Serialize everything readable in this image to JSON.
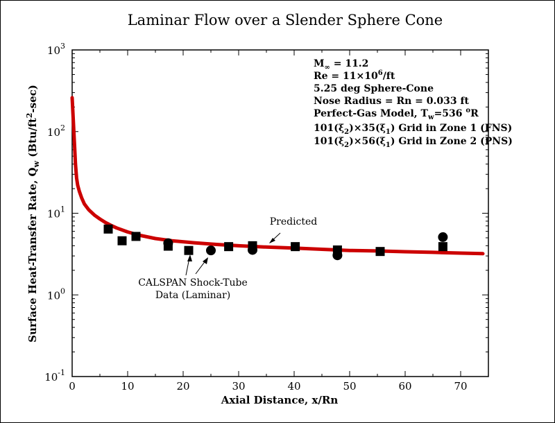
{
  "chart_data": {
    "type": "line",
    "title": "Laminar Flow over a Slender Sphere Cone",
    "xlabel": "Axial Distance, x/Rn",
    "ylabel": {
      "pre": "Surface Heat-Transfer Rate, Q",
      "sub": "w",
      "mid": " (Btu/ft",
      "sup": "2",
      "post": "-sec)"
    },
    "xlim": [
      0,
      75
    ],
    "ylim": [
      0.1,
      1000
    ],
    "yscale": "log",
    "x_ticks": [
      "0",
      "10",
      "20",
      "30",
      "40",
      "50",
      "60",
      "70"
    ],
    "y_ticks": [
      {
        "base": "10",
        "exp": "-1"
      },
      {
        "base": "10",
        "exp": "0"
      },
      {
        "base": "10",
        "exp": "1"
      },
      {
        "base": "10",
        "exp": "2"
      },
      {
        "base": "10",
        "exp": "3"
      }
    ],
    "series": [
      {
        "name": "Predicted",
        "kind": "line",
        "color": "#cc0000",
        "x": [
          0,
          0.2,
          0.4,
          0.6,
          0.8,
          1,
          1.3,
          1.7,
          2.2,
          3,
          4,
          5,
          6,
          7,
          8,
          10,
          12,
          15,
          18,
          22,
          26,
          30,
          35,
          40,
          45,
          50,
          55,
          60,
          65,
          70,
          74
        ],
        "y": [
          260,
          140,
          75,
          40,
          27,
          22,
          18.5,
          15.5,
          13,
          11,
          9.5,
          8.5,
          7.7,
          7.1,
          6.6,
          5.9,
          5.4,
          4.9,
          4.6,
          4.35,
          4.15,
          4.0,
          3.85,
          3.75,
          3.62,
          3.5,
          3.45,
          3.38,
          3.32,
          3.25,
          3.2
        ]
      },
      {
        "name": "CALSPAN Shock-Tube Data (Laminar)",
        "kind": "squares",
        "color": "#000000",
        "x": [
          6.5,
          9,
          11.5,
          17.3,
          21,
          32.5,
          28.2,
          40.2,
          47.8,
          55.5,
          66.8
        ],
        "y": [
          6.4,
          4.6,
          5.2,
          3.95,
          3.5,
          4.0,
          3.9,
          3.9,
          3.55,
          3.4,
          3.9
        ]
      },
      {
        "name": "CALSPAN Shock-Tube Data (Laminar)",
        "kind": "circles",
        "color": "#000000",
        "x": [
          17.3,
          25,
          32.5,
          47.8,
          66.8
        ],
        "y": [
          4.3,
          3.5,
          3.55,
          3.05,
          5.1
        ]
      }
    ],
    "annotations": {
      "predicted": "Predicted",
      "data_line1": "CALSPAN Shock-Tube",
      "data_line2": "Data (Laminar)"
    },
    "conditions": {
      "mach": {
        "pre": "M",
        "sub": "∞",
        "post": " = 11.2"
      },
      "re": {
        "pre": "Re = 11×10",
        "sup": "6",
        "post": "/ft"
      },
      "cone": "5.25 deg Sphere-Cone",
      "nose": "Nose Radius = Rn = 0.033 ft",
      "gas": {
        "pre": "Perfect-Gas Model, T",
        "sub": "w",
        "mid": "=536 ",
        "sup": "o",
        "post": "R"
      },
      "grid1": {
        "a": "101(ξ",
        "asub": "2",
        "b": ")×35(ξ",
        "bsub": "1",
        "c": ") Grid in Zone 1 (FNS)"
      },
      "grid2": {
        "a": "101(ξ",
        "asub": "2",
        "b": ")×56(ξ",
        "bsub": "1",
        "c": ") Grid in Zone 2 (PNS)"
      }
    },
    "grid": false,
    "legend": "none"
  }
}
